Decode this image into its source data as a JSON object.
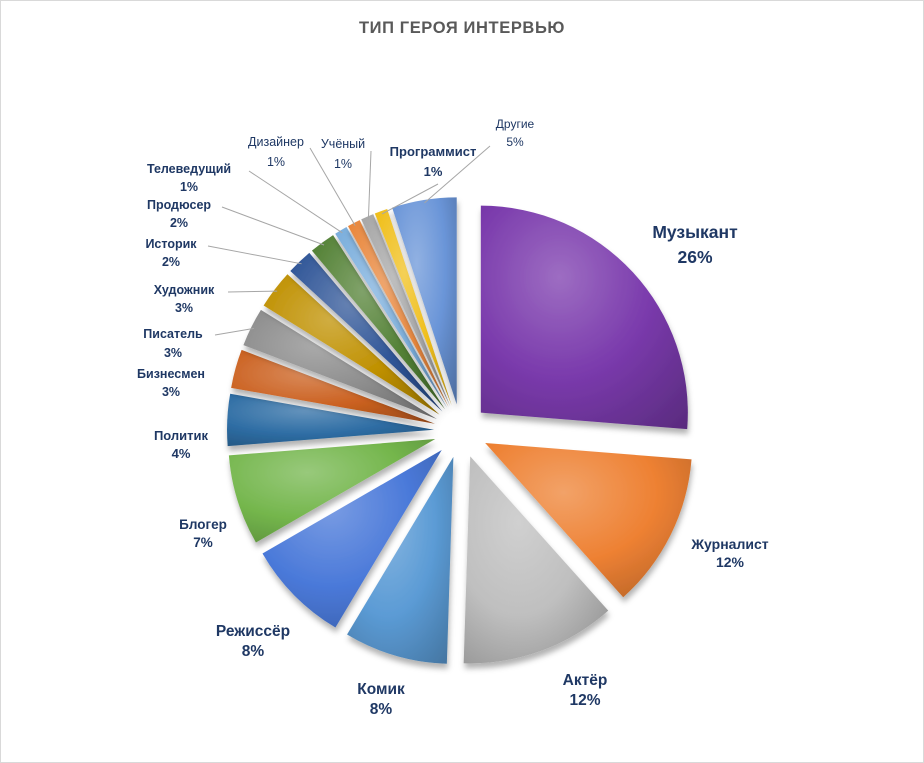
{
  "title": "ТИП ГЕРОЯ ИНТЕРВЬЮ",
  "colors": {
    "title_text": "#595959",
    "label_text": "#1F3864",
    "leader_line": "#A6A6A6",
    "background": "#FFFFFF",
    "page_border": "#D9D9D9"
  },
  "chart_data": {
    "type": "pie",
    "title": "ТИП ГЕРОЯ ИНТЕРВЬЮ",
    "style": "exploded pie, 3d bevel, starts at 12 o'clock clockwise",
    "legend_position": "none",
    "data_labels": "category name and percent outside slices",
    "slices": [
      {
        "label": "Музыкант",
        "value": 26,
        "pct_label": "26%",
        "color": "#7A3AAC"
      },
      {
        "label": "Журналист",
        "value": 12,
        "pct_label": "12%",
        "color": "#EE8133"
      },
      {
        "label": "Актёр",
        "value": 12,
        "pct_label": "12%",
        "color": "#BFBFBF"
      },
      {
        "label": "Комик",
        "value": 8,
        "pct_label": "8%",
        "color": "#5B9BD5"
      },
      {
        "label": "Режиссёр",
        "value": 8,
        "pct_label": "8%",
        "color": "#4A79D9"
      },
      {
        "label": "Блогер",
        "value": 7,
        "pct_label": "7%",
        "color": "#74B64C"
      },
      {
        "label": "Политик",
        "value": 4,
        "pct_label": "4%",
        "color": "#2E6DA4"
      },
      {
        "label": "Бизнесмен",
        "value": 3,
        "pct_label": "3%",
        "color": "#CB6120"
      },
      {
        "label": "Писатель",
        "value": 3,
        "pct_label": "3%",
        "color": "#8C8C8C"
      },
      {
        "label": "Художник",
        "value": 3,
        "pct_label": "3%",
        "color": "#BF9000"
      },
      {
        "label": "Историк",
        "value": 2,
        "pct_label": "2%",
        "color": "#2F5597"
      },
      {
        "label": "Продюсер",
        "value": 2,
        "pct_label": "2%",
        "color": "#538135"
      },
      {
        "label": "Телеведущий",
        "value": 1,
        "pct_label": "1%",
        "color": "#7CAFDD"
      },
      {
        "label": "Дизайнер",
        "value": 1,
        "pct_label": "1%",
        "color": "#E9883E"
      },
      {
        "label": "Учёный",
        "value": 1,
        "pct_label": "1%",
        "color": "#A8A8A8"
      },
      {
        "label": "Программист",
        "value": 1,
        "pct_label": "1%",
        "color": "#F0BF1C"
      },
      {
        "label": "Другие",
        "value": 5,
        "pct_label": "5%",
        "color": "#6A95D8"
      }
    ]
  }
}
